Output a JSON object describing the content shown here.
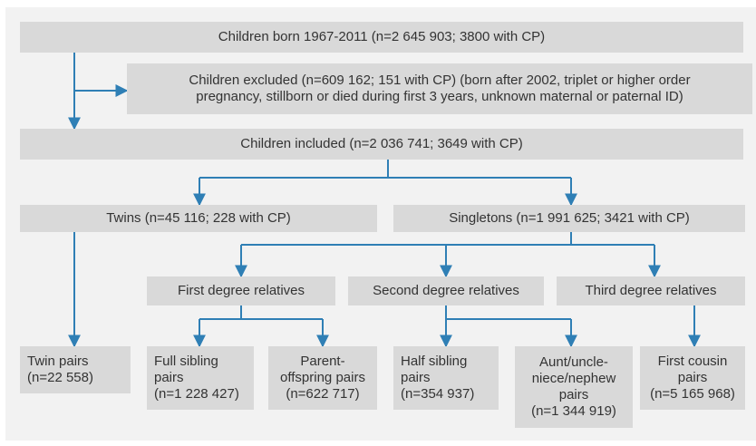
{
  "nodes": [
    {
      "lines": [
        "Children born 1967-2011 (n=2 645 903; 3800 with CP)"
      ]
    },
    {
      "lines": [
        "Children excluded (n=609 162; 151 with CP) (born after 2002, triplet or higher order",
        "pregnancy, stillborn or died during first 3 years, unknown maternal or paternal ID)"
      ]
    },
    {
      "lines": [
        "Children included (n=2 036 741; 3649 with CP)"
      ]
    },
    {
      "lines": [
        "Twins (n=45 116; 228 with CP)"
      ]
    },
    {
      "lines": [
        "Singletons (n=1 991 625; 3421 with CP)"
      ]
    },
    {
      "lines": [
        "First degree relatives"
      ]
    },
    {
      "lines": [
        "Second degree relatives"
      ]
    },
    {
      "lines": [
        "Third degree relatives"
      ]
    },
    {
      "lines": [
        "Twin pairs",
        "(n=22 558)"
      ]
    },
    {
      "lines": [
        "Full sibling",
        "pairs",
        "(n=1 228 427)"
      ]
    },
    {
      "lines": [
        "Parent-",
        "offspring pairs",
        "(n=622 717)"
      ]
    },
    {
      "lines": [
        "Half sibling",
        "pairs",
        "(n=354 937)"
      ]
    },
    {
      "lines": [
        "Aunt/uncle-",
        "niece/nephew",
        "pairs",
        "(n=1 344 919)"
      ]
    },
    {
      "lines": [
        "First cousin",
        "pairs",
        "(n=5 165 968)"
      ]
    }
  ]
}
